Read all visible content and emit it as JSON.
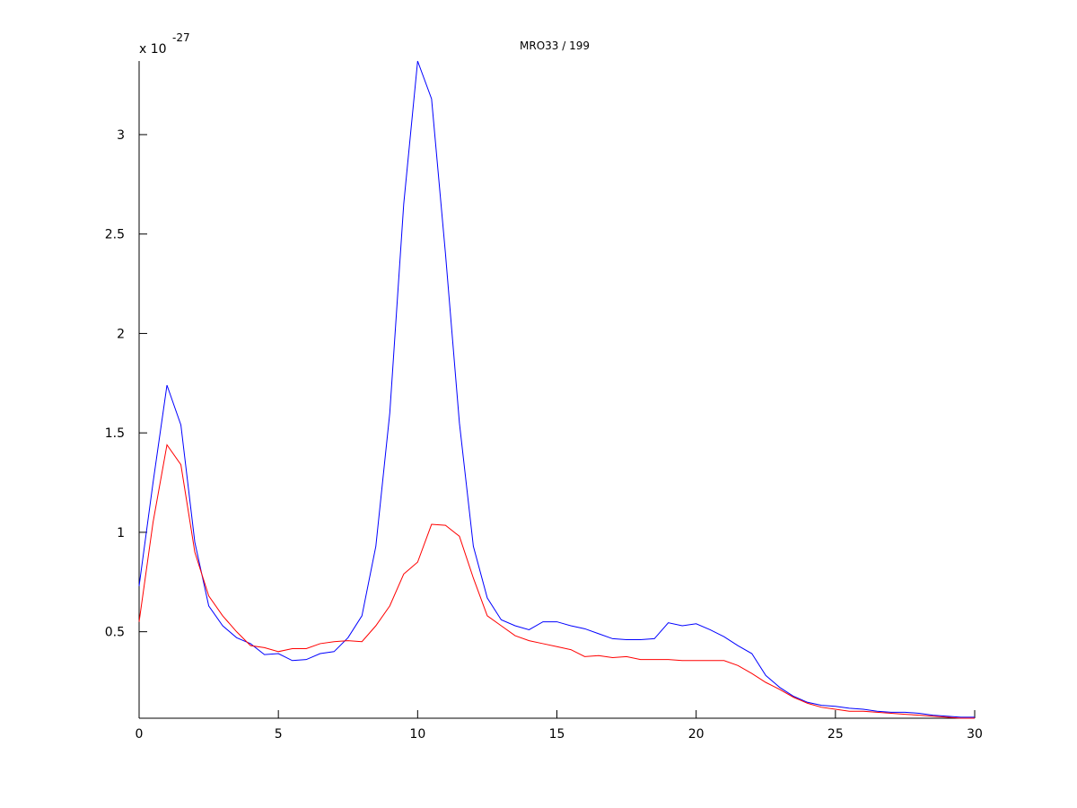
{
  "chart_data": {
    "type": "line",
    "title": "MRO33 / 199",
    "y_multiplier": {
      "base": "x 10",
      "exponent": "-27"
    },
    "x": [
      0,
      0.5,
      1,
      1.5,
      2,
      2.5,
      3,
      3.5,
      4,
      4.5,
      5,
      5.5,
      6,
      6.5,
      7,
      7.5,
      8,
      8.5,
      9,
      9.5,
      10,
      10.5,
      11,
      11.5,
      12,
      12.5,
      13,
      13.5,
      14,
      14.5,
      15,
      15.5,
      16,
      16.5,
      17,
      17.5,
      18,
      18.5,
      19,
      19.5,
      20,
      20.5,
      21,
      21.5,
      22,
      22.5,
      23,
      23.5,
      24,
      24.5,
      25,
      25.5,
      26,
      26.5,
      27,
      27.5,
      28,
      28.5,
      29,
      29.5,
      30
    ],
    "series": [
      {
        "color": "#0000ff",
        "values": [
          0.73,
          1.25,
          1.74,
          1.54,
          0.95,
          0.63,
          0.53,
          0.47,
          0.44,
          0.385,
          0.39,
          0.355,
          0.36,
          0.39,
          0.4,
          0.47,
          0.58,
          0.93,
          1.6,
          2.65,
          3.37,
          3.18,
          2.4,
          1.55,
          0.93,
          0.67,
          0.56,
          0.53,
          0.51,
          0.55,
          0.55,
          0.53,
          0.515,
          0.49,
          0.465,
          0.46,
          0.46,
          0.465,
          0.545,
          0.53,
          0.54,
          0.51,
          0.475,
          0.43,
          0.39,
          0.28,
          0.22,
          0.175,
          0.145,
          0.13,
          0.125,
          0.115,
          0.11,
          0.1,
          0.095,
          0.095,
          0.09,
          0.08,
          0.075,
          0.07,
          0.07
        ]
      },
      {
        "color": "#ff0000",
        "values": [
          0.55,
          1.05,
          1.44,
          1.34,
          0.9,
          0.68,
          0.58,
          0.5,
          0.43,
          0.42,
          0.4,
          0.415,
          0.415,
          0.44,
          0.45,
          0.455,
          0.45,
          0.53,
          0.63,
          0.79,
          0.85,
          1.04,
          1.035,
          0.98,
          0.77,
          0.58,
          0.53,
          0.48,
          0.455,
          0.44,
          0.425,
          0.41,
          0.375,
          0.38,
          0.37,
          0.375,
          0.36,
          0.36,
          0.36,
          0.355,
          0.355,
          0.355,
          0.355,
          0.33,
          0.29,
          0.245,
          0.21,
          0.17,
          0.14,
          0.12,
          0.11,
          0.1,
          0.1,
          0.095,
          0.09,
          0.085,
          0.08,
          0.075,
          0.07,
          0.065,
          0.065
        ]
      }
    ],
    "xlim": [
      0,
      30
    ],
    "xticks": [
      0,
      5,
      10,
      15,
      20,
      25,
      30
    ],
    "ylim": [
      0.065,
      3.37
    ],
    "yticks": [
      0.5,
      1,
      1.5,
      2,
      2.5,
      3
    ]
  }
}
